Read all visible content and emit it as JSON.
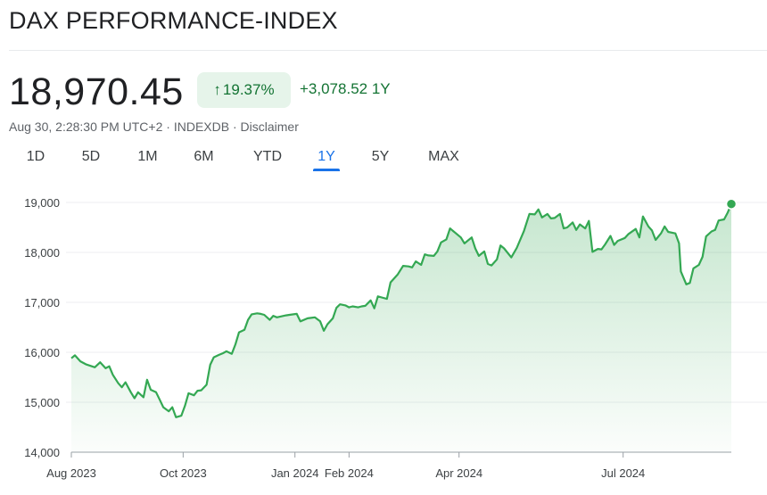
{
  "header": {
    "title": "DAX PERFORMANCE-INDEX"
  },
  "quote": {
    "price": "18,970.45",
    "change_pct": "19.37%",
    "change_abs": "+3,078.52",
    "period": "1Y",
    "timestamp": "Aug 30, 2:28:30 PM UTC+2",
    "source": "INDEXDB",
    "disclaimer": "Disclaimer"
  },
  "icons": {
    "change_arrow": "arrow-up-icon"
  },
  "colors": {
    "positive": "#137333",
    "positive_bg": "#e6f4ea",
    "line": "#34a853",
    "active_tab": "#1a73e8"
  },
  "tabs": [
    {
      "label": "1D",
      "active": false
    },
    {
      "label": "5D",
      "active": false
    },
    {
      "label": "1M",
      "active": false
    },
    {
      "label": "6M",
      "active": false
    },
    {
      "label": "YTD",
      "active": false
    },
    {
      "label": "1Y",
      "active": true
    },
    {
      "label": "5Y",
      "active": false
    },
    {
      "label": "MAX",
      "active": false
    }
  ],
  "chart_data": {
    "type": "area",
    "y_ticks": [
      "19,000",
      "18,000",
      "17,000",
      "16,000",
      "15,000",
      "14,000"
    ],
    "y_tick_values": [
      19000,
      18000,
      17000,
      16000,
      15000,
      14000
    ],
    "ylim": [
      14000,
      19500
    ],
    "x_ticks": [
      "Aug 2023",
      "Oct 2023",
      "Jan 2024",
      "Feb 2024",
      "Apr 2024",
      "Jul 2024"
    ],
    "x_tick_dates": [
      "2023-08-30",
      "2023-10-31",
      "2024-01-01",
      "2024-01-31",
      "2024-04-01",
      "2024-07-01"
    ],
    "grid": true,
    "series": [
      {
        "values": [
          [
            "2023-08-30",
            15880
          ],
          [
            "2023-09-01",
            15940
          ],
          [
            "2023-09-04",
            15820
          ],
          [
            "2023-09-07",
            15760
          ],
          [
            "2023-09-12",
            15700
          ],
          [
            "2023-09-15",
            15800
          ],
          [
            "2023-09-18",
            15680
          ],
          [
            "2023-09-20",
            15720
          ],
          [
            "2023-09-22",
            15550
          ],
          [
            "2023-09-25",
            15380
          ],
          [
            "2023-09-27",
            15300
          ],
          [
            "2023-09-29",
            15400
          ],
          [
            "2023-10-02",
            15200
          ],
          [
            "2023-10-04",
            15080
          ],
          [
            "2023-10-06",
            15200
          ],
          [
            "2023-10-09",
            15100
          ],
          [
            "2023-10-11",
            15450
          ],
          [
            "2023-10-13",
            15250
          ],
          [
            "2023-10-16",
            15200
          ],
          [
            "2023-10-18",
            15050
          ],
          [
            "2023-10-20",
            14900
          ],
          [
            "2023-10-23",
            14820
          ],
          [
            "2023-10-25",
            14900
          ],
          [
            "2023-10-27",
            14700
          ],
          [
            "2023-10-30",
            14730
          ],
          [
            "2023-11-01",
            14930
          ],
          [
            "2023-11-03",
            15180
          ],
          [
            "2023-11-06",
            15140
          ],
          [
            "2023-11-08",
            15230
          ],
          [
            "2023-11-10",
            15240
          ],
          [
            "2023-11-13",
            15350
          ],
          [
            "2023-11-15",
            15750
          ],
          [
            "2023-11-17",
            15900
          ],
          [
            "2023-11-20",
            15950
          ],
          [
            "2023-11-22",
            15980
          ],
          [
            "2023-11-24",
            16020
          ],
          [
            "2023-11-27",
            15970
          ],
          [
            "2023-11-29",
            16160
          ],
          [
            "2023-12-01",
            16400
          ],
          [
            "2023-12-04",
            16450
          ],
          [
            "2023-12-06",
            16650
          ],
          [
            "2023-12-08",
            16760
          ],
          [
            "2023-12-11",
            16780
          ],
          [
            "2023-12-13",
            16770
          ],
          [
            "2023-12-15",
            16750
          ],
          [
            "2023-12-18",
            16650
          ],
          [
            "2023-12-20",
            16730
          ],
          [
            "2023-12-22",
            16700
          ],
          [
            "2023-12-27",
            16740
          ],
          [
            "2023-12-29",
            16750
          ],
          [
            "2024-01-02",
            16770
          ],
          [
            "2024-01-04",
            16620
          ],
          [
            "2024-01-08",
            16680
          ],
          [
            "2024-01-10",
            16690
          ],
          [
            "2024-01-12",
            16700
          ],
          [
            "2024-01-15",
            16620
          ],
          [
            "2024-01-17",
            16430
          ],
          [
            "2024-01-19",
            16560
          ],
          [
            "2024-01-22",
            16680
          ],
          [
            "2024-01-24",
            16890
          ],
          [
            "2024-01-26",
            16960
          ],
          [
            "2024-01-29",
            16940
          ],
          [
            "2024-01-31",
            16900
          ],
          [
            "2024-02-02",
            16920
          ],
          [
            "2024-02-05",
            16900
          ],
          [
            "2024-02-07",
            16920
          ],
          [
            "2024-02-09",
            16930
          ],
          [
            "2024-02-12",
            17040
          ],
          [
            "2024-02-14",
            16880
          ],
          [
            "2024-02-16",
            17120
          ],
          [
            "2024-02-19",
            17090
          ],
          [
            "2024-02-21",
            17070
          ],
          [
            "2024-02-23",
            17400
          ],
          [
            "2024-02-27",
            17560
          ],
          [
            "2024-03-01",
            17730
          ],
          [
            "2024-03-04",
            17720
          ],
          [
            "2024-03-06",
            17700
          ],
          [
            "2024-03-08",
            17820
          ],
          [
            "2024-03-11",
            17750
          ],
          [
            "2024-03-13",
            17960
          ],
          [
            "2024-03-15",
            17940
          ],
          [
            "2024-03-18",
            17930
          ],
          [
            "2024-03-20",
            18020
          ],
          [
            "2024-03-22",
            18200
          ],
          [
            "2024-03-25",
            18260
          ],
          [
            "2024-03-27",
            18480
          ],
          [
            "2024-04-02",
            18300
          ],
          [
            "2024-04-04",
            18180
          ],
          [
            "2024-04-08",
            18300
          ],
          [
            "2024-04-10",
            18080
          ],
          [
            "2024-04-12",
            17930
          ],
          [
            "2024-04-15",
            18020
          ],
          [
            "2024-04-17",
            17770
          ],
          [
            "2024-04-19",
            17740
          ],
          [
            "2024-04-22",
            17860
          ],
          [
            "2024-04-24",
            18140
          ],
          [
            "2024-04-26",
            18080
          ],
          [
            "2024-04-30",
            17900
          ],
          [
            "2024-05-03",
            18090
          ],
          [
            "2024-05-07",
            18430
          ],
          [
            "2024-05-10",
            18770
          ],
          [
            "2024-05-13",
            18760
          ],
          [
            "2024-05-15",
            18860
          ],
          [
            "2024-05-17",
            18700
          ],
          [
            "2024-05-20",
            18770
          ],
          [
            "2024-05-22",
            18680
          ],
          [
            "2024-05-24",
            18690
          ],
          [
            "2024-05-27",
            18770
          ],
          [
            "2024-05-29",
            18480
          ],
          [
            "2024-05-31",
            18500
          ],
          [
            "2024-06-03",
            18600
          ],
          [
            "2024-06-05",
            18450
          ],
          [
            "2024-06-07",
            18560
          ],
          [
            "2024-06-10",
            18480
          ],
          [
            "2024-06-12",
            18630
          ],
          [
            "2024-06-14",
            18010
          ],
          [
            "2024-06-17",
            18070
          ],
          [
            "2024-06-19",
            18060
          ],
          [
            "2024-06-21",
            18160
          ],
          [
            "2024-06-24",
            18330
          ],
          [
            "2024-06-26",
            18150
          ],
          [
            "2024-06-28",
            18230
          ],
          [
            "2024-07-02",
            18290
          ],
          [
            "2024-07-04",
            18370
          ],
          [
            "2024-07-08",
            18470
          ],
          [
            "2024-07-10",
            18300
          ],
          [
            "2024-07-12",
            18720
          ],
          [
            "2024-07-15",
            18520
          ],
          [
            "2024-07-17",
            18440
          ],
          [
            "2024-07-19",
            18250
          ],
          [
            "2024-07-22",
            18380
          ],
          [
            "2024-07-24",
            18520
          ],
          [
            "2024-07-26",
            18410
          ],
          [
            "2024-07-30",
            18380
          ],
          [
            "2024-08-01",
            18180
          ],
          [
            "2024-08-02",
            17620
          ],
          [
            "2024-08-05",
            17360
          ],
          [
            "2024-08-07",
            17390
          ],
          [
            "2024-08-09",
            17680
          ],
          [
            "2024-08-12",
            17750
          ],
          [
            "2024-08-14",
            17910
          ],
          [
            "2024-08-16",
            18320
          ],
          [
            "2024-08-19",
            18420
          ],
          [
            "2024-08-21",
            18450
          ],
          [
            "2024-08-23",
            18640
          ],
          [
            "2024-08-26",
            18660
          ],
          [
            "2024-08-28",
            18800
          ],
          [
            "2024-08-30",
            18970
          ]
        ]
      }
    ]
  }
}
